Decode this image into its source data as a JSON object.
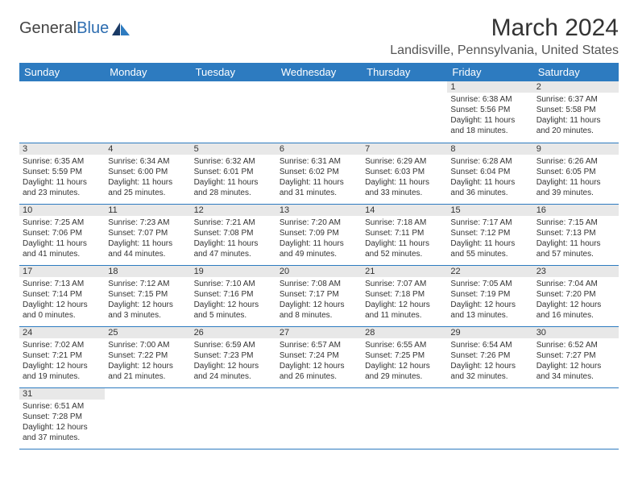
{
  "logo": {
    "text1": "General",
    "text2": "Blue"
  },
  "title": "March 2024",
  "location": "Landisville, Pennsylvania, United States",
  "colors": {
    "header_bg": "#2d7bc0",
    "header_text": "#ffffff",
    "daynum_bg": "#e8e8e8",
    "cell_border": "#2d7bc0",
    "text": "#333333",
    "logo_blue": "#2d6db0",
    "background": "#ffffff"
  },
  "font": {
    "family": "Arial",
    "title_size": 30,
    "location_size": 16,
    "th_size": 13,
    "body_size": 10
  },
  "weekdays": [
    "Sunday",
    "Monday",
    "Tuesday",
    "Wednesday",
    "Thursday",
    "Friday",
    "Saturday"
  ],
  "weeks": [
    [
      null,
      null,
      null,
      null,
      null,
      {
        "n": "1",
        "sunrise": "6:38 AM",
        "sunset": "5:56 PM",
        "daylight": "11 hours and 18 minutes."
      },
      {
        "n": "2",
        "sunrise": "6:37 AM",
        "sunset": "5:58 PM",
        "daylight": "11 hours and 20 minutes."
      }
    ],
    [
      {
        "n": "3",
        "sunrise": "6:35 AM",
        "sunset": "5:59 PM",
        "daylight": "11 hours and 23 minutes."
      },
      {
        "n": "4",
        "sunrise": "6:34 AM",
        "sunset": "6:00 PM",
        "daylight": "11 hours and 25 minutes."
      },
      {
        "n": "5",
        "sunrise": "6:32 AM",
        "sunset": "6:01 PM",
        "daylight": "11 hours and 28 minutes."
      },
      {
        "n": "6",
        "sunrise": "6:31 AM",
        "sunset": "6:02 PM",
        "daylight": "11 hours and 31 minutes."
      },
      {
        "n": "7",
        "sunrise": "6:29 AM",
        "sunset": "6:03 PM",
        "daylight": "11 hours and 33 minutes."
      },
      {
        "n": "8",
        "sunrise": "6:28 AM",
        "sunset": "6:04 PM",
        "daylight": "11 hours and 36 minutes."
      },
      {
        "n": "9",
        "sunrise": "6:26 AM",
        "sunset": "6:05 PM",
        "daylight": "11 hours and 39 minutes."
      }
    ],
    [
      {
        "n": "10",
        "sunrise": "7:25 AM",
        "sunset": "7:06 PM",
        "daylight": "11 hours and 41 minutes."
      },
      {
        "n": "11",
        "sunrise": "7:23 AM",
        "sunset": "7:07 PM",
        "daylight": "11 hours and 44 minutes."
      },
      {
        "n": "12",
        "sunrise": "7:21 AM",
        "sunset": "7:08 PM",
        "daylight": "11 hours and 47 minutes."
      },
      {
        "n": "13",
        "sunrise": "7:20 AM",
        "sunset": "7:09 PM",
        "daylight": "11 hours and 49 minutes."
      },
      {
        "n": "14",
        "sunrise": "7:18 AM",
        "sunset": "7:11 PM",
        "daylight": "11 hours and 52 minutes."
      },
      {
        "n": "15",
        "sunrise": "7:17 AM",
        "sunset": "7:12 PM",
        "daylight": "11 hours and 55 minutes."
      },
      {
        "n": "16",
        "sunrise": "7:15 AM",
        "sunset": "7:13 PM",
        "daylight": "11 hours and 57 minutes."
      }
    ],
    [
      {
        "n": "17",
        "sunrise": "7:13 AM",
        "sunset": "7:14 PM",
        "daylight": "12 hours and 0 minutes."
      },
      {
        "n": "18",
        "sunrise": "7:12 AM",
        "sunset": "7:15 PM",
        "daylight": "12 hours and 3 minutes."
      },
      {
        "n": "19",
        "sunrise": "7:10 AM",
        "sunset": "7:16 PM",
        "daylight": "12 hours and 5 minutes."
      },
      {
        "n": "20",
        "sunrise": "7:08 AM",
        "sunset": "7:17 PM",
        "daylight": "12 hours and 8 minutes."
      },
      {
        "n": "21",
        "sunrise": "7:07 AM",
        "sunset": "7:18 PM",
        "daylight": "12 hours and 11 minutes."
      },
      {
        "n": "22",
        "sunrise": "7:05 AM",
        "sunset": "7:19 PM",
        "daylight": "12 hours and 13 minutes."
      },
      {
        "n": "23",
        "sunrise": "7:04 AM",
        "sunset": "7:20 PM",
        "daylight": "12 hours and 16 minutes."
      }
    ],
    [
      {
        "n": "24",
        "sunrise": "7:02 AM",
        "sunset": "7:21 PM",
        "daylight": "12 hours and 19 minutes."
      },
      {
        "n": "25",
        "sunrise": "7:00 AM",
        "sunset": "7:22 PM",
        "daylight": "12 hours and 21 minutes."
      },
      {
        "n": "26",
        "sunrise": "6:59 AM",
        "sunset": "7:23 PM",
        "daylight": "12 hours and 24 minutes."
      },
      {
        "n": "27",
        "sunrise": "6:57 AM",
        "sunset": "7:24 PM",
        "daylight": "12 hours and 26 minutes."
      },
      {
        "n": "28",
        "sunrise": "6:55 AM",
        "sunset": "7:25 PM",
        "daylight": "12 hours and 29 minutes."
      },
      {
        "n": "29",
        "sunrise": "6:54 AM",
        "sunset": "7:26 PM",
        "daylight": "12 hours and 32 minutes."
      },
      {
        "n": "30",
        "sunrise": "6:52 AM",
        "sunset": "7:27 PM",
        "daylight": "12 hours and 34 minutes."
      }
    ],
    [
      {
        "n": "31",
        "sunrise": "6:51 AM",
        "sunset": "7:28 PM",
        "daylight": "12 hours and 37 minutes."
      },
      null,
      null,
      null,
      null,
      null,
      null
    ]
  ],
  "labels": {
    "sunrise": "Sunrise:",
    "sunset": "Sunset:",
    "daylight": "Daylight:"
  }
}
